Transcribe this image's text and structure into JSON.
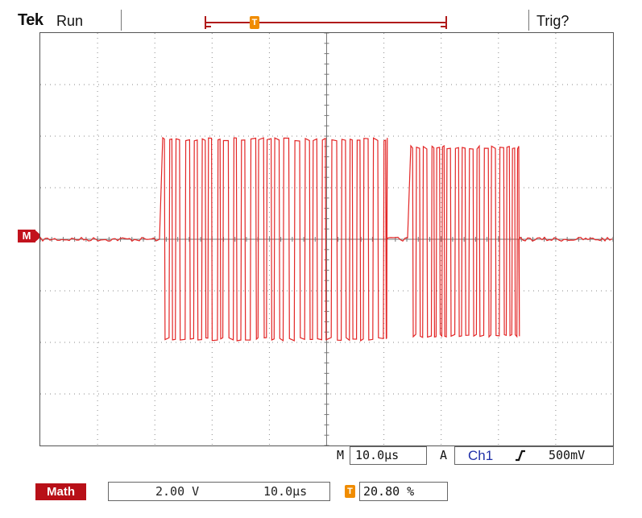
{
  "header": {
    "brand": "Tek",
    "run_state": "Run",
    "trigger_status": "Trig?"
  },
  "markers": {
    "trigger_position_label": "T",
    "channel_reference_label": "M"
  },
  "status_bar": {
    "timebase_prefix": "M",
    "timebase_value": "10.0µs",
    "trigger_mode": "A",
    "trigger_source": "Ch1",
    "trigger_slope_icon": "rising-edge-icon",
    "trigger_level": "500mV"
  },
  "math_bar": {
    "label": "Math",
    "vertical_scale": "2.00 V",
    "horizontal_scale": "10.0µs",
    "trigger_icon_label": "T",
    "trigger_position": "20.80 %"
  },
  "colors": {
    "trace": "#e32626",
    "math_badge": "#b81018",
    "trigger_marker": "#f08c00",
    "trigger_source_text": "#1f2fa8"
  }
}
